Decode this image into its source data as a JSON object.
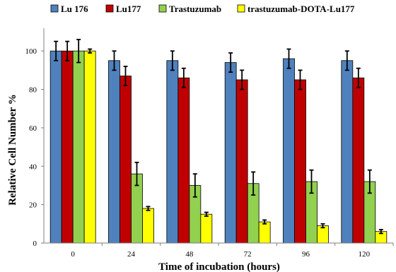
{
  "chart_data": {
    "type": "bar",
    "title": "",
    "xlabel": "Time of incubation (hours)",
    "ylabel": "Relative Cell Number %",
    "categories": [
      "0",
      "24",
      "48",
      "72",
      "96",
      "120"
    ],
    "ylim": [
      0,
      110
    ],
    "yticks": [
      0,
      20,
      40,
      60,
      80,
      100
    ],
    "grid": false,
    "legend_position": "top",
    "series": [
      {
        "name": "Lu 176",
        "color": "#4F81BD",
        "values": [
          100,
          95,
          95,
          94,
          96,
          95
        ],
        "errors": [
          5,
          5,
          5,
          5,
          5,
          5
        ]
      },
      {
        "name": "Lu177",
        "color": "#C00000",
        "values": [
          100,
          87,
          86,
          85,
          85,
          86
        ],
        "errors": [
          5,
          5,
          5,
          5,
          5,
          5
        ]
      },
      {
        "name": "Trastuzumab",
        "color": "#92D050",
        "values": [
          100,
          36,
          30,
          31,
          32,
          32
        ],
        "errors": [
          6,
          6,
          6,
          6,
          6,
          6
        ]
      },
      {
        "name": "trastuzumab-DOTA-Lu177",
        "color": "#FFFF00",
        "values": [
          100,
          18,
          15,
          11,
          9,
          6
        ],
        "errors": [
          1,
          1,
          1,
          1,
          1,
          1
        ]
      }
    ]
  }
}
